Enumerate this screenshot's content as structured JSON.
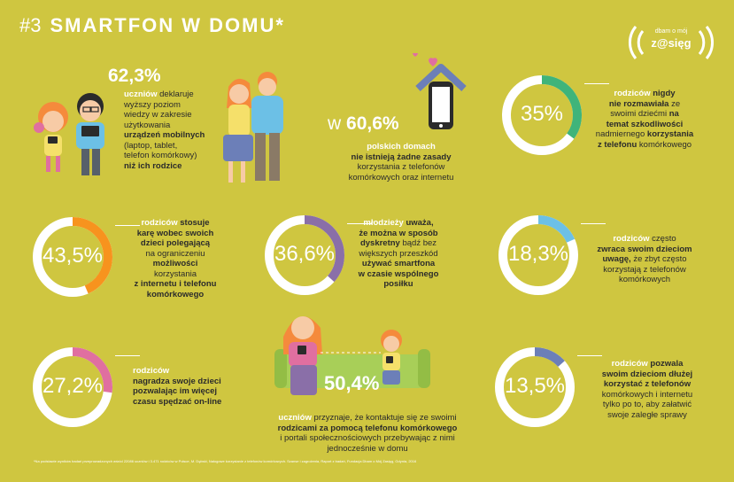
{
  "header": {
    "number": "#3",
    "title": "SMARTFON W DOMU*"
  },
  "logo": {
    "line1": "dbam o mój",
    "line2": "z@sięg"
  },
  "stat_users": {
    "percent": "62,3%",
    "lead": "uczniów",
    "l1": "deklaruje",
    "l2": "wyższy poziom",
    "l3": "wiedzy w zakresie",
    "l4": "użytkowania",
    "l5": "urządzeń mobilnych",
    "l6": "(laptop, tablet,",
    "l7": "telefon komórkowy)",
    "l8": "niż ich rodzice"
  },
  "stat_home": {
    "prefix": "w",
    "percent": "60,6%",
    "lead": "polskich domach",
    "l1": "nie istnieją żadne zasady",
    "l2": "korzystania z telefonów",
    "l3": "komórkowych oraz internetu"
  },
  "rings": [
    {
      "id": "r35",
      "label": "35%",
      "fraction": 0.35,
      "color": "#3fb47a",
      "lead": "rodziców",
      "l1": "nigdy",
      "l2": "nie rozmawiała",
      "l2b": "ze",
      "l3": "swoimi dziećmi",
      "l3b": "na",
      "l4": "temat szkodliwości",
      "l5": "nadmiernego",
      "l5b": "korzystania",
      "l6": "z telefonu",
      "l6b": "komórkowego"
    },
    {
      "id": "r435",
      "label": "43,5%",
      "fraction": 0.435,
      "color": "#f7931e",
      "lead": "rodziców",
      "l1": "stosuje",
      "l2": "karę wobec swoich",
      "l3": "dzieci polegającą",
      "l4": "na ograniczeniu",
      "l5": "możliwości",
      "l6": "korzystania",
      "l7": "z internetu i telefonu",
      "l8": "komórkowego"
    },
    {
      "id": "r366",
      "label": "36,6%",
      "fraction": 0.366,
      "color": "#8a6fa8",
      "lead": "młodzieży",
      "l1": "uważa,",
      "l2": "że można w sposób",
      "l3": "dyskretny",
      "l3b": "bądź bez",
      "l4": "większych przeszkód",
      "l5": "używać smartfona",
      "l6": "w czasie wspólnego",
      "l7": "posiłku"
    },
    {
      "id": "r183",
      "label": "18,3%",
      "fraction": 0.183,
      "color": "#6cc0e6",
      "lead": "rodziców",
      "l1": "często",
      "l2": "zwraca swoim dzieciom",
      "l3": "uwagę,",
      "l3b": "że zbyt często",
      "l4": "korzystają z telefonów",
      "l5": "komórkowych"
    },
    {
      "id": "r272",
      "label": "27,2%",
      "fraction": 0.272,
      "color": "#e06fa0",
      "lead": "rodziców",
      "l1": "nagradza swoje dzieci",
      "l2": "pozwalając im więcej",
      "l3": "czasu spędzać on-line"
    },
    {
      "id": "r135",
      "label": "13,5%",
      "fraction": 0.135,
      "color": "#6c7fb8",
      "lead": "rodziców",
      "l1": "pozwala",
      "l2": "swoim dzieciom dłużej",
      "l3": "korzystać z telefonów",
      "l4": "komórkowych i internetu",
      "l5": "tylko po to, aby załatwić",
      "l6": "swoje zaległe sprawy"
    }
  ],
  "stat_contact": {
    "percent": "50,4%",
    "lead": "uczniów",
    "l1": "przyznaje, że kontaktuje się ze swoimi",
    "l2": "rodzicami za pomocą telefonu komórkowego",
    "l3": "i portali społecznościowych przebywając z nimi",
    "l4": "jednocześnie w domu"
  },
  "footnote": "*Na podstawie wyników badań przeprowadzonych wśród 22086 uczniów i 3.471 rodziców w Polsce, M. Dębski, Nałogowe korzystanie z telefonów komórkowych. Szanse i zagrożenia, Raport z badań, Fundacja Dbam o Mój Zasięg, Gdynia, 2016"
}
